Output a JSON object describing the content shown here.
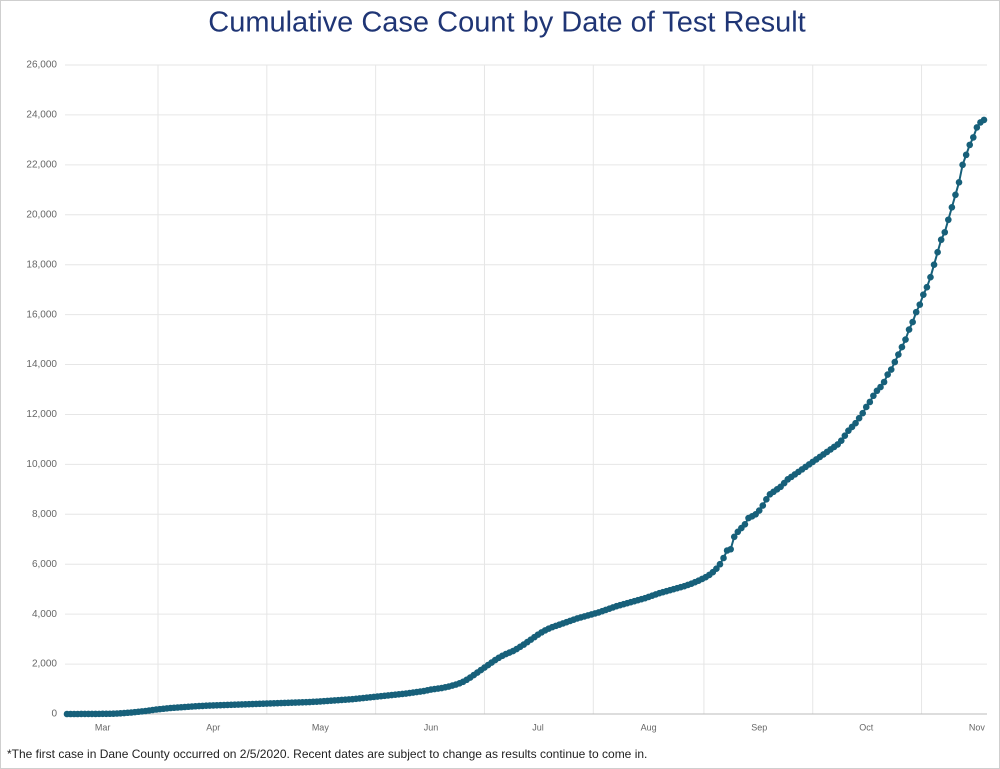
{
  "chart_data": {
    "type": "line",
    "title": "Cumulative Case Count by Date of Test Result",
    "footnote": "*The first case in Dane County occurred on 2/5/2020. Recent dates are subject to change as results continue to come in.",
    "categories": [
      null,
      null,
      null,
      null,
      null,
      null,
      null,
      null,
      null,
      null,
      "Mar",
      null,
      null,
      null,
      null,
      null,
      null,
      null,
      null,
      null,
      null,
      null,
      null,
      null,
      null,
      null,
      null,
      null,
      null,
      null,
      null,
      null,
      null,
      null,
      null,
      null,
      null,
      null,
      null,
      null,
      null,
      "Apr",
      null,
      null,
      null,
      null,
      null,
      null,
      null,
      null,
      null,
      null,
      null,
      null,
      null,
      null,
      null,
      null,
      null,
      null,
      null,
      null,
      null,
      null,
      null,
      null,
      null,
      null,
      null,
      null,
      null,
      "May",
      null,
      null,
      null,
      null,
      null,
      null,
      null,
      null,
      null,
      null,
      null,
      null,
      null,
      null,
      null,
      null,
      null,
      null,
      null,
      null,
      null,
      null,
      null,
      null,
      null,
      null,
      null,
      null,
      null,
      null,
      "Jun",
      null,
      null,
      null,
      null,
      null,
      null,
      null,
      null,
      null,
      null,
      null,
      null,
      null,
      null,
      null,
      null,
      null,
      null,
      null,
      null,
      null,
      null,
      null,
      null,
      null,
      null,
      null,
      null,
      null,
      "Jul",
      null,
      null,
      null,
      null,
      null,
      null,
      null,
      null,
      null,
      null,
      null,
      null,
      null,
      null,
      null,
      null,
      null,
      null,
      null,
      null,
      null,
      null,
      null,
      null,
      null,
      null,
      null,
      null,
      null,
      null,
      "Aug",
      null,
      null,
      null,
      null,
      null,
      null,
      null,
      null,
      null,
      null,
      null,
      null,
      null,
      null,
      null,
      null,
      null,
      null,
      null,
      null,
      null,
      null,
      null,
      null,
      null,
      null,
      null,
      null,
      null,
      null,
      "Sep",
      null,
      null,
      null,
      null,
      null,
      null,
      null,
      null,
      null,
      null,
      null,
      null,
      null,
      null,
      null,
      null,
      null,
      null,
      null,
      null,
      null,
      null,
      null,
      null,
      null,
      null,
      null,
      null,
      null,
      "Oct",
      null,
      null,
      null,
      null,
      null,
      null,
      null,
      null,
      null,
      null,
      null,
      null,
      null,
      null,
      null,
      null,
      null,
      null,
      null,
      null,
      null,
      null,
      null,
      null,
      null,
      null,
      null,
      null,
      null,
      null,
      "Nov",
      null,
      null
    ],
    "values": [
      0,
      0,
      0,
      0,
      1,
      1,
      2,
      3,
      4,
      5,
      6,
      8,
      10,
      14,
      20,
      28,
      38,
      50,
      60,
      75,
      90,
      105,
      120,
      140,
      160,
      180,
      195,
      210,
      225,
      240,
      250,
      260,
      270,
      280,
      290,
      300,
      310,
      318,
      325,
      332,
      340,
      345,
      350,
      355,
      360,
      365,
      370,
      375,
      380,
      385,
      390,
      395,
      400,
      405,
      410,
      415,
      420,
      425,
      430,
      435,
      440,
      445,
      450,
      455,
      460,
      465,
      470,
      475,
      480,
      488,
      495,
      505,
      515,
      525,
      535,
      545,
      555,
      565,
      575,
      585,
      595,
      610,
      625,
      640,
      655,
      670,
      685,
      700,
      715,
      730,
      745,
      760,
      775,
      790,
      805,
      820,
      840,
      860,
      880,
      900,
      920,
      950,
      980,
      1000,
      1020,
      1040,
      1070,
      1100,
      1140,
      1180,
      1230,
      1290,
      1370,
      1460,
      1560,
      1660,
      1760,
      1860,
      1960,
      2060,
      2160,
      2250,
      2330,
      2400,
      2460,
      2520,
      2600,
      2690,
      2780,
      2880,
      2980,
      3080,
      3180,
      3270,
      3350,
      3420,
      3480,
      3530,
      3580,
      3630,
      3680,
      3730,
      3780,
      3830,
      3870,
      3910,
      3950,
      3990,
      4030,
      4070,
      4120,
      4170,
      4220,
      4270,
      4320,
      4360,
      4400,
      4440,
      4480,
      4520,
      4560,
      4600,
      4640,
      4690,
      4740,
      4790,
      4840,
      4880,
      4920,
      4960,
      5000,
      5040,
      5080,
      5120,
      5170,
      5220,
      5280,
      5340,
      5410,
      5480,
      5570,
      5680,
      5820,
      6000,
      6250,
      6550,
      6600,
      7100,
      7300,
      7450,
      7600,
      7850,
      7920,
      8000,
      8150,
      8350,
      8600,
      8800,
      8900,
      9000,
      9100,
      9250,
      9400,
      9500,
      9600,
      9700,
      9800,
      9900,
      10000,
      10100,
      10200,
      10300,
      10400,
      10500,
      10600,
      10700,
      10800,
      10950,
      11150,
      11350,
      11500,
      11650,
      11850,
      12050,
      12300,
      12500,
      12750,
      12950,
      13100,
      13300,
      13600,
      13800,
      14100,
      14400,
      14700,
      15000,
      15400,
      15700,
      16100,
      16400,
      16800,
      17100,
      17500,
      18000,
      18500,
      19000,
      19300,
      19800,
      20300,
      20800,
      21300,
      22000,
      22400,
      22800,
      23100,
      23500,
      23700,
      23800
    ],
    "color": "#17607a",
    "ylim": [
      0,
      26000
    ],
    "yticks": [
      0,
      {
        "value": 2000,
        "label": "2,000"
      },
      {
        "value": 4000,
        "label": "4,000"
      },
      {
        "value": 6000,
        "label": "6,000"
      },
      {
        "value": 8000,
        "label": "8,000"
      },
      {
        "value": 10000,
        "label": "10,000"
      },
      {
        "value": 12000,
        "label": "12,000"
      },
      {
        "value": 14000,
        "label": "14,000"
      },
      {
        "value": 16000,
        "label": "16,000"
      },
      {
        "value": 18000,
        "label": "18,000"
      },
      {
        "value": 20000,
        "label": "20,000"
      },
      {
        "value": 22000,
        "label": "22,000"
      },
      {
        "value": 24000,
        "label": "24,000"
      },
      {
        "value": 26000,
        "label": "26,000"
      }
    ],
    "grid": true
  }
}
